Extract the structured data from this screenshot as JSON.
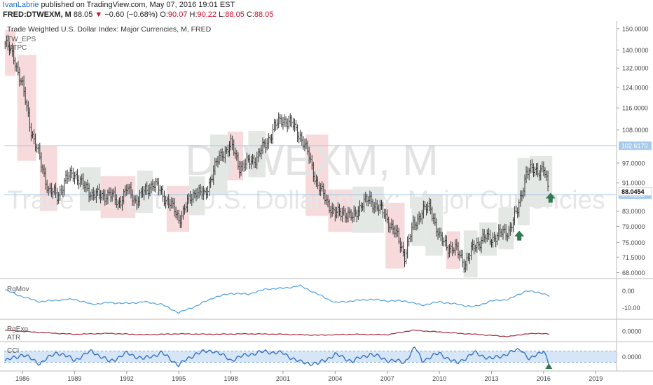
{
  "header": {
    "author": "IvanLabrie",
    "published": "published on TradingView.com, May 07, 2016 19:01 EST",
    "symbol": "FRED:DTWEXM, M",
    "price": "88.05",
    "change_arrow": "▼",
    "change": "−0.60 (−0.68%)",
    "open_label": "O:",
    "open": "90.07",
    "high_label": "H:",
    "high": "90.22",
    "low_label": "L:",
    "low": "88.05",
    "close_label": "C:",
    "close": "88.05"
  },
  "chart_data": {
    "type": "line",
    "title": "Trade Weighted U.S. Dollar Index: Major Currencies, M, FRED",
    "indicators_top": [
      "TW_EPS",
      "MTPC"
    ],
    "watermark_symbol": "DTWEXM, M",
    "watermark_name": "Trade Weighted U.S. Dollar Index: Major Currencies",
    "x_ticks": [
      "1986",
      "1989",
      "1992",
      "1995",
      "1998",
      "2001",
      "2004",
      "2007",
      "2010",
      "2013",
      "2016",
      "2019"
    ],
    "y_ticks": [
      "150.0000",
      "140.0000",
      "132.0000",
      "124.0000",
      "116.0000",
      "108.0000",
      "97.0000",
      "91.0000",
      "83.0000",
      "79.0000",
      "75.0000",
      "71.5000",
      "68.0000"
    ],
    "ylim": [
      67,
      151
    ],
    "log_scale": true,
    "current_price_label": "88.0454",
    "hlines": [
      {
        "label": "102.6170",
        "value": 102.617
      },
      {
        "label": "87.5553",
        "value": 87.5553
      }
    ],
    "series": [
      {
        "x": [
          1985.0,
          1985.5,
          1986.0,
          1986.5,
          1987.0,
          1987.5,
          1988.0,
          1988.5,
          1989.0,
          1989.5,
          1990.0,
          1990.5,
          1991.0,
          1991.5,
          1992.0,
          1992.5,
          1993.0,
          1993.5,
          1994.0,
          1994.5,
          1995.0,
          1995.5,
          1996.0,
          1996.5,
          1997.0,
          1997.5,
          1998.0,
          1998.5,
          1999.0,
          1999.5,
          2000.0,
          2000.5,
          2001.0,
          2001.5,
          2002.0,
          2002.5,
          2003.0,
          2003.5,
          2004.0,
          2004.5,
          2005.0,
          2005.5,
          2006.0,
          2006.5,
          2007.0,
          2007.5,
          2008.0,
          2008.5,
          2009.0,
          2009.5,
          2010.0,
          2010.5,
          2011.0,
          2011.5,
          2012.0,
          2012.5,
          2013.0,
          2013.5,
          2014.0,
          2014.5,
          2015.0,
          2015.5,
          2016.0,
          2016.3
        ],
        "values": [
          143,
          137,
          124,
          108,
          98,
          89,
          87,
          92,
          94,
          90,
          88,
          87,
          88,
          85,
          89,
          86,
          88,
          91,
          88,
          85,
          81,
          85,
          89,
          87,
          95,
          100,
          103,
          96,
          97,
          99,
          103,
          109,
          112,
          110,
          106,
          99,
          90,
          86,
          82,
          83,
          81,
          85,
          86,
          84,
          81,
          77,
          72,
          79,
          83,
          84,
          76,
          74,
          73,
          70,
          74,
          76,
          76,
          77,
          78,
          83,
          94,
          95,
          95,
          88.05
        ]
      }
    ],
    "shaded_zones": [
      {
        "from": 1985.0,
        "to": 1985.6,
        "kind": "bearish"
      },
      {
        "from": 1985.7,
        "to": 1986.8,
        "kind": "bearish"
      },
      {
        "from": 1987.0,
        "to": 1988.0,
        "kind": "bearish"
      },
      {
        "from": 1989.3,
        "to": 1990.5,
        "kind": "bullish"
      },
      {
        "from": 1990.5,
        "to": 1992.5,
        "kind": "bearish"
      },
      {
        "from": 1992.6,
        "to": 1993.5,
        "kind": "bullish"
      },
      {
        "from": 1994.3,
        "to": 1995.6,
        "kind": "bearish"
      },
      {
        "from": 1995.6,
        "to": 1996.5,
        "kind": "bullish"
      },
      {
        "from": 1996.8,
        "to": 1997.8,
        "kind": "bullish"
      },
      {
        "from": 1997.8,
        "to": 1998.7,
        "kind": "bearish"
      },
      {
        "from": 1999.0,
        "to": 2000.0,
        "kind": "bullish"
      },
      {
        "from": 2002.3,
        "to": 2003.6,
        "kind": "bearish"
      },
      {
        "from": 2003.6,
        "to": 2005.0,
        "kind": "bearish"
      },
      {
        "from": 2005.0,
        "to": 2006.8,
        "kind": "bullish"
      },
      {
        "from": 2006.9,
        "to": 2008.0,
        "kind": "bearish"
      },
      {
        "from": 2008.4,
        "to": 2009.2,
        "kind": "bullish"
      },
      {
        "from": 2009.2,
        "to": 2010.2,
        "kind": "bullish"
      },
      {
        "from": 2010.4,
        "to": 2011.2,
        "kind": "bearish"
      },
      {
        "from": 2011.4,
        "to": 2012.2,
        "kind": "bullish"
      },
      {
        "from": 2012.3,
        "to": 2013.3,
        "kind": "bullish"
      },
      {
        "from": 2013.4,
        "to": 2014.3,
        "kind": "bullish"
      },
      {
        "from": 2014.5,
        "to": 2015.2,
        "kind": "bullish"
      },
      {
        "from": 2015.2,
        "to": 2016.5,
        "kind": "bullish"
      }
    ],
    "signal_arrows": [
      {
        "x": 2014.6,
        "value": 76.5,
        "direction": "up"
      },
      {
        "x": 2016.4,
        "value": 86.5,
        "direction": "up"
      }
    ]
  },
  "panels": {
    "rgmov": {
      "label": "RgMov",
      "y_ticks": [
        "0.00",
        "-10.00"
      ],
      "ylim": [
        -16,
        6
      ],
      "x": [
        1985.0,
        1986.0,
        1987.0,
        1988.0,
        1989.0,
        1990.0,
        1991.0,
        1992.0,
        1993.0,
        1994.0,
        1995.0,
        1996.0,
        1997.0,
        1998.0,
        1999.0,
        2000.0,
        2001.0,
        2002.0,
        2003.0,
        2004.0,
        2005.0,
        2006.0,
        2007.0,
        2008.0,
        2009.0,
        2010.0,
        2011.0,
        2012.0,
        2013.0,
        2014.0,
        2015.0,
        2016.0,
        2016.4
      ],
      "values": [
        0.5,
        -3.5,
        -6.5,
        -5.5,
        -5,
        -8,
        -7,
        -7.5,
        -6.5,
        -8,
        -13,
        -9,
        -4,
        -1.5,
        -2,
        1,
        1.5,
        3,
        -2,
        -7,
        -6,
        -5,
        -6,
        -6,
        -8.5,
        -6.5,
        -8,
        -9.5,
        -6,
        -5,
        0,
        -1.5,
        -3.5
      ]
    },
    "rgexp": {
      "label": "RgExp",
      "label2": "ATR",
      "y_ticks": [
        "0.0000"
      ],
      "ylim": [
        -1,
        1
      ],
      "x": [
        1985.0,
        1987.0,
        1989.0,
        1991.0,
        1993.0,
        1995.0,
        1997.0,
        1999.0,
        2001.0,
        2003.0,
        2005.0,
        2007.0,
        2008.5,
        2010.0,
        2012.0,
        2014.0,
        2015.0,
        2016.0,
        2016.4
      ],
      "values": [
        0.1,
        -0.15,
        -0.35,
        -0.25,
        -0.4,
        -0.3,
        -0.35,
        -0.3,
        -0.35,
        -0.45,
        -0.35,
        -0.4,
        0.1,
        -0.1,
        -0.35,
        -0.6,
        -0.3,
        -0.25,
        -0.35
      ]
    },
    "cci": {
      "label": "CCI",
      "y_ticks": [
        "0.0000"
      ],
      "ylim": [
        -230,
        230
      ],
      "band": [
        -100,
        100
      ],
      "x": [
        1985.0,
        1986.0,
        1987.0,
        1988.0,
        1989.0,
        1990.0,
        1991.0,
        1992.0,
        1993.0,
        1994.0,
        1995.0,
        1996.0,
        1997.0,
        1998.0,
        1999.0,
        2000.0,
        2001.0,
        2002.0,
        2003.0,
        2004.0,
        2005.0,
        2006.0,
        2007.0,
        2008.0,
        2008.6,
        2009.0,
        2010.0,
        2011.0,
        2012.0,
        2013.0,
        2014.0,
        2014.7,
        2015.2,
        2015.8,
        2016.0,
        2016.4
      ],
      "values": [
        -80,
        40,
        -120,
        80,
        -60,
        100,
        -90,
        60,
        -40,
        70,
        -150,
        60,
        110,
        -60,
        40,
        90,
        60,
        -100,
        -130,
        40,
        -80,
        50,
        -60,
        -100,
        170,
        -70,
        60,
        -120,
        70,
        -40,
        60,
        140,
        -60,
        80,
        120,
        -210
      ]
    }
  },
  "colors": {
    "price_bars": "#333333",
    "hline": "#9ec5e8",
    "bear_zone": "#f5d4d6",
    "bull_zone": "#dfe4df",
    "arrow": "#2f7a4f",
    "rgmov_line": "#4ea0e0",
    "rgexp_line": "#a02a3a",
    "cci_line": "#3573c4",
    "cci_band": "#d6e6f7",
    "price_label_bg": "#ffffff",
    "hline_label_bg": "#a8cbec"
  }
}
